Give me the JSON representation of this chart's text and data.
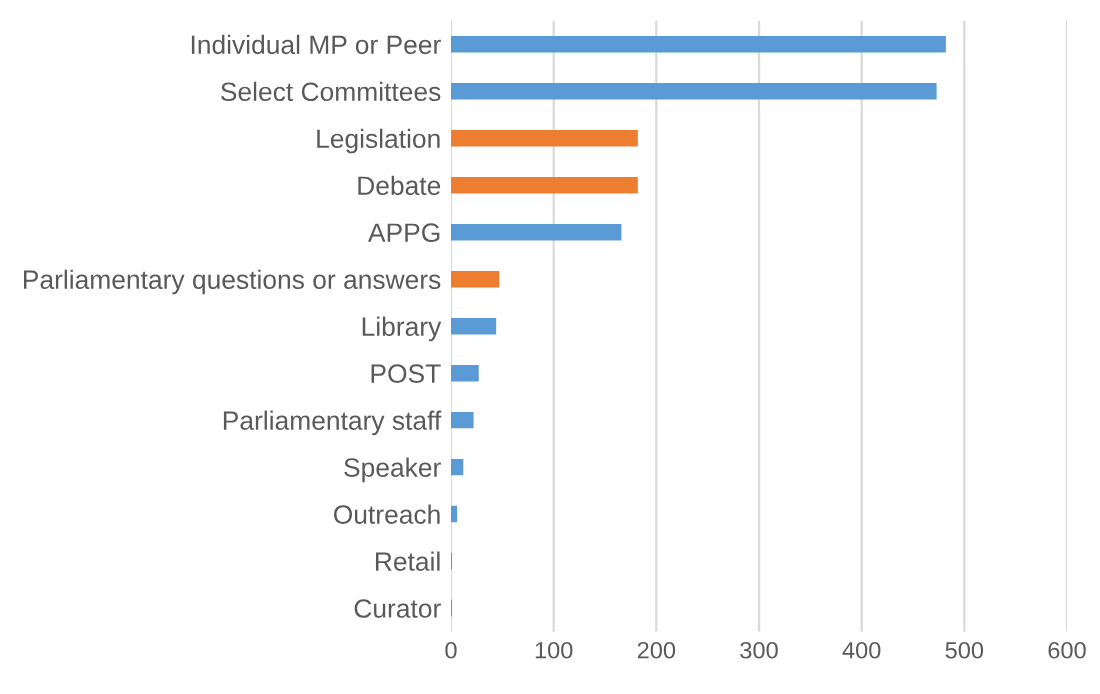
{
  "chart_data": {
    "type": "bar",
    "orientation": "horizontal",
    "categories": [
      "Individual MP or Peer",
      "Select Committees",
      "Legislation",
      "Debate",
      "APPG",
      "Parliamentary questions or answers",
      "Library",
      "POST",
      "Parliamentary staff",
      "Speaker",
      "Outreach",
      "Retail",
      "Curator"
    ],
    "values": [
      482,
      473,
      182,
      182,
      166,
      47,
      44,
      27,
      22,
      12,
      6,
      1,
      1
    ],
    "colors": [
      "#5b9bd5",
      "#5b9bd5",
      "#ed7d31",
      "#ed7d31",
      "#5b9bd5",
      "#ed7d31",
      "#5b9bd5",
      "#5b9bd5",
      "#5b9bd5",
      "#5b9bd5",
      "#5b9bd5",
      "#5b9bd5",
      "#5b9bd5"
    ],
    "xlim": [
      0,
      600
    ],
    "xticks": [
      0,
      100,
      200,
      300,
      400,
      500,
      600
    ],
    "grid": "x"
  }
}
